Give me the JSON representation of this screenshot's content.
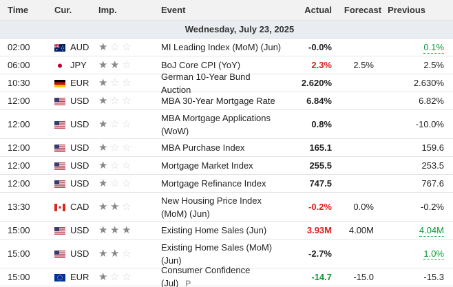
{
  "header": {
    "time": "Time",
    "currency": "Cur.",
    "importance": "Imp.",
    "event": "Event",
    "actual": "Actual",
    "forecast": "Forecast",
    "previous": "Previous"
  },
  "date": "Wednesday, July 23, 2025",
  "colors": {
    "positive": "#0a9a36",
    "negative": "#e02020",
    "star_on": "#888888",
    "star_off": "#d4d4d4"
  },
  "rows": [
    {
      "time": "02:00",
      "currency": "AUD",
      "flag": "au",
      "importance": 1,
      "event": "MI Leading Index (MoM) (Jun)",
      "actual": "-0.0%",
      "actual_color": "",
      "forecast": "",
      "previous": "0.1%",
      "previous_color": "pos",
      "previous_underline": true
    },
    {
      "time": "06:00",
      "currency": "JPY",
      "flag": "jp",
      "importance": 2,
      "event": "BoJ Core CPI (YoY)",
      "actual": "2.3%",
      "actual_color": "neg",
      "forecast": "2.5%",
      "previous": "2.5%",
      "previous_color": "",
      "previous_underline": false
    },
    {
      "time": "10:30",
      "currency": "EUR",
      "flag": "de",
      "importance": 1,
      "event": "German 10-Year Bund Auction",
      "actual": "2.620%",
      "actual_color": "",
      "forecast": "",
      "previous": "2.630%",
      "previous_color": "",
      "previous_underline": false
    },
    {
      "time": "12:00",
      "currency": "USD",
      "flag": "us",
      "importance": 1,
      "event": "MBA 30-Year Mortgage Rate",
      "actual": "6.84%",
      "actual_color": "",
      "forecast": "",
      "previous": "6.82%",
      "previous_color": "",
      "previous_underline": false
    },
    {
      "time": "12:00",
      "currency": "USD",
      "flag": "us",
      "importance": 1,
      "event": "MBA Mortgage Applications (WoW)",
      "actual": "0.8%",
      "actual_color": "",
      "forecast": "",
      "previous": "-10.0%",
      "previous_color": "",
      "previous_underline": false,
      "tall": true
    },
    {
      "time": "12:00",
      "currency": "USD",
      "flag": "us",
      "importance": 1,
      "event": "MBA Purchase Index",
      "actual": "165.1",
      "actual_color": "",
      "forecast": "",
      "previous": "159.6",
      "previous_color": "",
      "previous_underline": false
    },
    {
      "time": "12:00",
      "currency": "USD",
      "flag": "us",
      "importance": 1,
      "event": "Mortgage Market Index",
      "actual": "255.5",
      "actual_color": "",
      "forecast": "",
      "previous": "253.5",
      "previous_color": "",
      "previous_underline": false
    },
    {
      "time": "12:00",
      "currency": "USD",
      "flag": "us",
      "importance": 1,
      "event": "Mortgage Refinance Index",
      "actual": "747.5",
      "actual_color": "",
      "forecast": "",
      "previous": "767.6",
      "previous_color": "",
      "previous_underline": false
    },
    {
      "time": "13:30",
      "currency": "CAD",
      "flag": "ca",
      "importance": 2,
      "event": "New Housing Price Index (MoM) (Jun)",
      "actual": "-0.2%",
      "actual_color": "neg",
      "forecast": "0.0%",
      "previous": "-0.2%",
      "previous_color": "",
      "previous_underline": false,
      "tall": true
    },
    {
      "time": "15:00",
      "currency": "USD",
      "flag": "us",
      "importance": 3,
      "event": "Existing Home Sales (Jun)",
      "actual": "3.93M",
      "actual_color": "neg",
      "forecast": "4.00M",
      "previous": "4.04M",
      "previous_color": "pos",
      "previous_underline": true
    },
    {
      "time": "15:00",
      "currency": "USD",
      "flag": "us",
      "importance": 2,
      "event": "Existing Home Sales (MoM) (Jun)",
      "actual": "-2.7%",
      "actual_color": "",
      "forecast": "",
      "previous": "1.0%",
      "previous_color": "pos",
      "previous_underline": true,
      "tall": true
    },
    {
      "time": "15:00",
      "currency": "EUR",
      "flag": "eu",
      "importance": 1,
      "event": "Consumer Confidence (Jul)",
      "event_badge": "P",
      "actual": "-14.7",
      "actual_color": "pos",
      "forecast": "-15.0",
      "previous": "-15.3",
      "previous_color": "",
      "previous_underline": false
    }
  ]
}
